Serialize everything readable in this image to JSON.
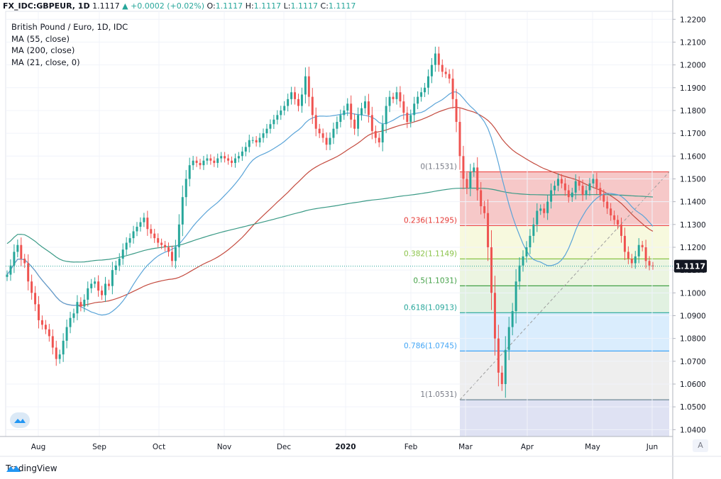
{
  "header": {
    "symbol": "FX_IDC:GBPEUR, 1D",
    "last_value": "1.1117",
    "change": "+0.0002 (+0.02%)",
    "ohlc": {
      "o_label": "O:",
      "o": "1.1117",
      "h_label": "H:",
      "h": "1.1117",
      "l_label": "L:",
      "l": "1.1117",
      "c_label": "C:",
      "c": "1.1117"
    }
  },
  "legend": {
    "title": "British Pound / Euro, 1D, IDC",
    "indicators": [
      "MA (55, close)",
      "MA (200, close)",
      "MA (21, close, 0)"
    ]
  },
  "footer": {
    "brand": "TradingView"
  },
  "price_badge": "1.1117",
  "axis_toggle": "A",
  "colors": {
    "up": "#26a69a",
    "down": "#ef5350",
    "ma55": "#c44b3f",
    "ma200": "#3a9a86",
    "ma21": "#5aa4d8",
    "fib_0": "#ef9a9a",
    "fib_236": "#f0f4c3",
    "fib_382": "#dcedc8",
    "fib_5": "#c8e6c9",
    "fib_618": "#bbdefb",
    "fib_786": "#e0e0e0",
    "fib_1": "#c5cae9"
  },
  "chart_data": {
    "type": "candlestick",
    "x_ticks": [
      "Aug",
      "Sep",
      "Oct",
      "Nov",
      "Dec",
      "2020",
      "Feb",
      "Mar",
      "Apr",
      "May",
      "Jun"
    ],
    "y_ticks": [
      "1.2200",
      "1.2100",
      "1.2000",
      "1.1900",
      "1.1800",
      "1.1700",
      "1.1600",
      "1.1500",
      "1.1400",
      "1.1300",
      "1.1200",
      "1.1100",
      "1.1000",
      "1.0900",
      "1.0800",
      "1.0700",
      "1.0600",
      "1.0500",
      "1.0400"
    ],
    "ylim": [
      1.037,
      1.2235
    ],
    "last_price": 1.1117,
    "fibonacci": [
      {
        "label": "0(1.1531)",
        "level": 0,
        "price": 1.1531
      },
      {
        "label": "0.236(1.1295)",
        "level": 0.236,
        "price": 1.1295
      },
      {
        "label": "0.382(1.1149)",
        "level": 0.382,
        "price": 1.1149
      },
      {
        "label": "0.5(1.1031)",
        "level": 0.5,
        "price": 1.1031
      },
      {
        "label": "0.618(1.0913)",
        "level": 0.618,
        "price": 1.0913
      },
      {
        "label": "0.786(1.0745)",
        "level": 0.786,
        "price": 1.0745
      },
      {
        "label": "1(1.0531)",
        "level": 1,
        "price": 1.0531
      }
    ],
    "series": [
      {
        "name": "MA (55, close)"
      },
      {
        "name": "MA (200, close)"
      },
      {
        "name": "MA (21, close, 0)"
      }
    ],
    "closes": [
      1.108,
      1.112,
      1.118,
      1.121,
      1.115,
      1.113,
      1.105,
      1.1,
      1.095,
      1.088,
      1.086,
      1.084,
      1.081,
      1.076,
      1.071,
      1.073,
      1.079,
      1.085,
      1.089,
      1.091,
      1.096,
      1.094,
      1.097,
      1.102,
      1.104,
      1.105,
      1.101,
      1.099,
      1.104,
      1.103,
      1.11,
      1.112,
      1.115,
      1.119,
      1.122,
      1.124,
      1.127,
      1.129,
      1.131,
      1.133,
      1.128,
      1.126,
      1.124,
      1.122,
      1.121,
      1.12,
      1.118,
      1.114,
      1.12,
      1.13,
      1.142,
      1.15,
      1.156,
      1.158,
      1.157,
      1.156,
      1.158,
      1.159,
      1.158,
      1.157,
      1.159,
      1.16,
      1.159,
      1.158,
      1.157,
      1.159,
      1.16,
      1.162,
      1.164,
      1.167,
      1.167,
      1.166,
      1.168,
      1.17,
      1.172,
      1.174,
      1.176,
      1.178,
      1.18,
      1.182,
      1.185,
      1.188,
      1.185,
      1.182,
      1.187,
      1.195,
      1.186,
      1.178,
      1.172,
      1.17,
      1.168,
      1.165,
      1.168,
      1.172,
      1.175,
      1.178,
      1.18,
      1.183,
      1.176,
      1.172,
      1.178,
      1.181,
      1.184,
      1.178,
      1.171,
      1.168,
      1.166,
      1.174,
      1.182,
      1.186,
      1.185,
      1.188,
      1.184,
      1.179,
      1.175,
      1.178,
      1.183,
      1.186,
      1.188,
      1.19,
      1.195,
      1.2,
      1.205,
      1.2,
      1.197,
      1.196,
      1.194,
      1.185,
      1.175,
      1.16,
      1.15,
      1.146,
      1.153,
      1.155,
      1.145,
      1.138,
      1.135,
      1.12,
      1.1,
      1.08,
      1.065,
      1.06,
      1.075,
      1.085,
      1.092,
      1.105,
      1.112,
      1.116,
      1.12,
      1.125,
      1.13,
      1.136,
      1.137,
      1.135,
      1.14,
      1.145,
      1.147,
      1.15,
      1.148,
      1.145,
      1.142,
      1.144,
      1.149,
      1.147,
      1.143,
      1.145,
      1.148,
      1.15,
      1.146,
      1.143,
      1.14,
      1.137,
      1.134,
      1.132,
      1.13,
      1.125,
      1.118,
      1.115,
      1.113,
      1.116,
      1.121,
      1.12,
      1.114,
      1.112,
      1.1117
    ]
  }
}
